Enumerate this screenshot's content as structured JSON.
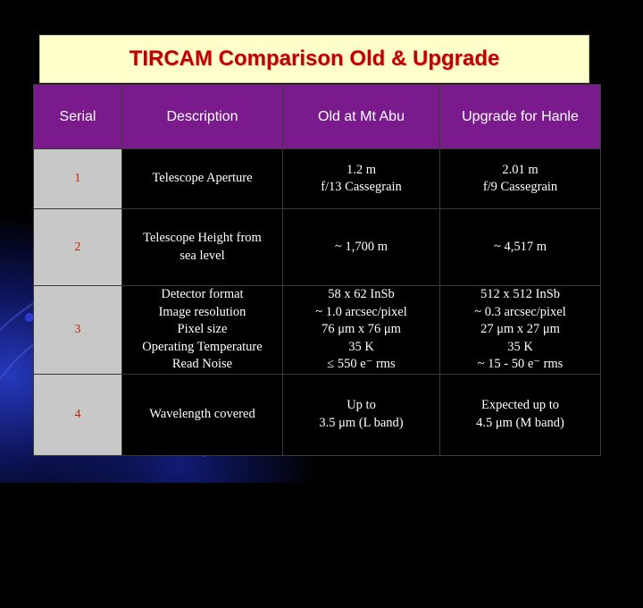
{
  "title": "TIRCAM Comparison Old & Upgrade",
  "table": {
    "headers": [
      "Serial",
      "Description",
      "Old at Mt Abu",
      "Upgrade for Hanle"
    ],
    "rows": [
      {
        "serial": "1",
        "description": [
          "Telescope Aperture"
        ],
        "old": [
          "1.2 m",
          "f/13 Cassegrain"
        ],
        "upgrade": [
          "2.01 m",
          "f/9 Cassegrain"
        ]
      },
      {
        "serial": "2",
        "description": [
          "Telescope Height from",
          "sea level"
        ],
        "old": [
          "~ 1,700 m"
        ],
        "upgrade": [
          "~ 4,517 m"
        ]
      },
      {
        "serial": "3",
        "description": [
          "Detector format",
          "Image resolution",
          "Pixel size",
          "Operating Temperature",
          "Read Noise"
        ],
        "old": [
          "58 x 62 InSb",
          "~ 1.0 arcsec/pixel",
          "76 μm x 76 μm",
          "35 K",
          "≤ 550 e⁻ rms"
        ],
        "upgrade": [
          "512 x 512 InSb",
          "~ 0.3 arcsec/pixel",
          "27 μm x 27 μm",
          "35 K",
          "~ 15 - 50 e⁻ rms"
        ]
      },
      {
        "serial": "4",
        "description": [
          "Wavelength covered"
        ],
        "old": [
          "Up to",
          "3.5 μm (L band)"
        ],
        "upgrade": [
          "Expected up to",
          "4.5 μm (M band)"
        ]
      }
    ]
  }
}
